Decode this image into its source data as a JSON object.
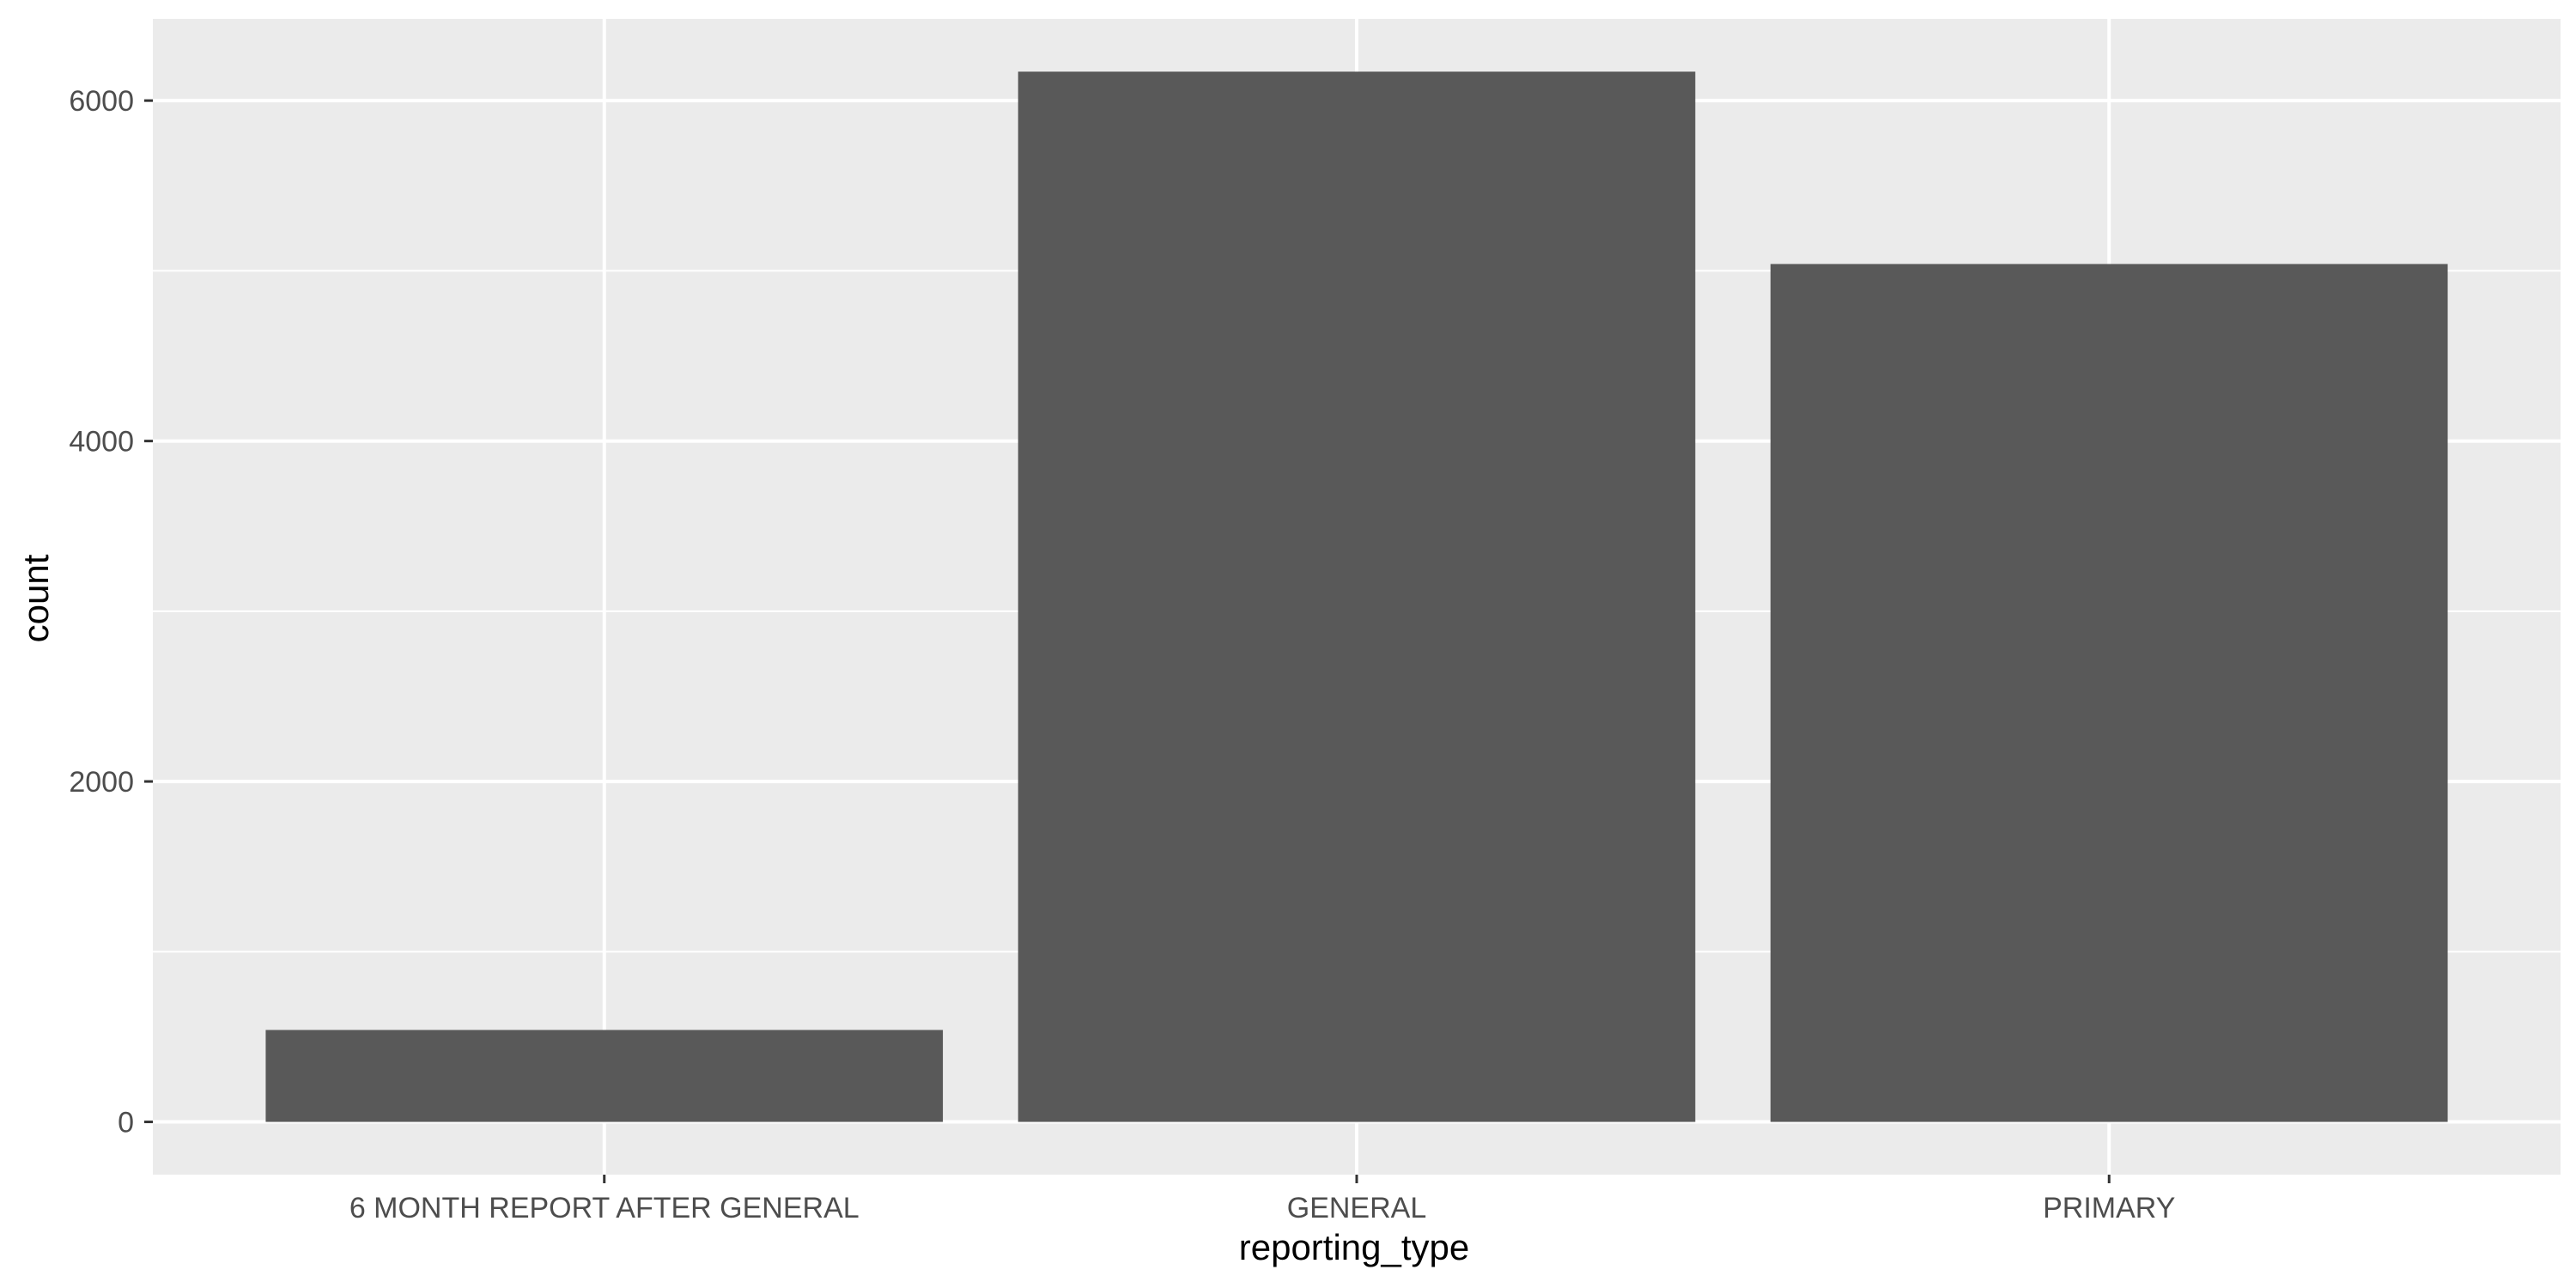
{
  "chart_data": {
    "type": "bar",
    "title": "",
    "xlabel": "reporting_type",
    "ylabel": "count",
    "categories": [
      "6 MONTH REPORT AFTER GENERAL",
      "GENERAL",
      "PRIMARY"
    ],
    "values": [
      540,
      6170,
      5040
    ],
    "ylim": [
      -310,
      6480
    ],
    "yticks": [
      0,
      2000,
      4000,
      6000
    ],
    "ytick_labels": [
      "0",
      "2000",
      "4000",
      "6000"
    ],
    "grid": true,
    "legend": "none",
    "colors": {
      "panel": "#EBEBEB",
      "gridline": "#FFFFFF",
      "bar": "#595959",
      "tick_text": "#4D4D4D",
      "tick_mark": "#333333",
      "title_text": "#000000"
    }
  }
}
